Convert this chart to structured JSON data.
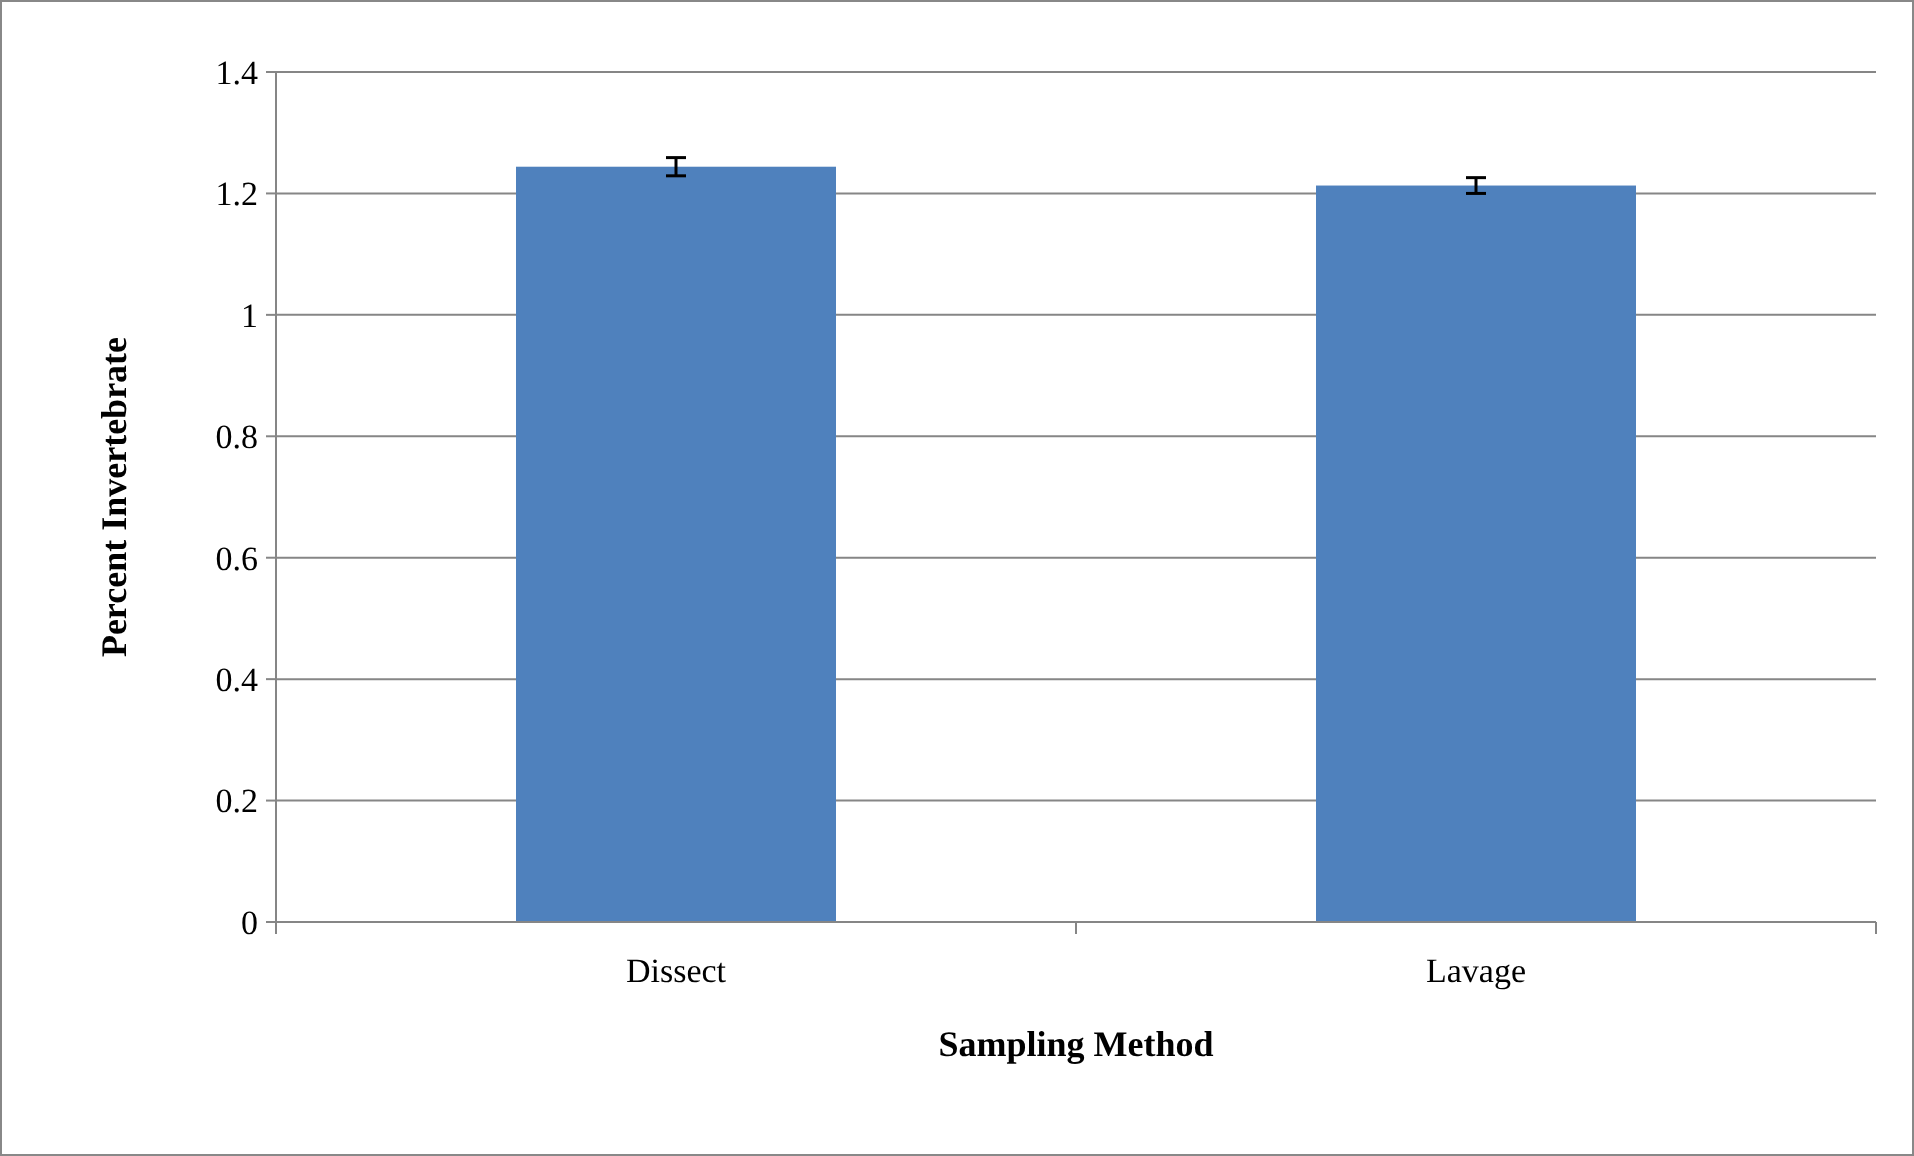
{
  "chart_data": {
    "type": "bar",
    "xlabel": "Sampling Method",
    "ylabel": "Percent Invertebrate",
    "categories": [
      "Dissect",
      "Lavage"
    ],
    "values": [
      1.244,
      1.213
    ],
    "errors": [
      0.015,
      0.013
    ],
    "color": "#4f81bd",
    "ylim": [
      0,
      1.4
    ],
    "yticks": [
      0,
      0.2,
      0.4,
      0.6,
      0.8,
      1,
      1.2,
      1.4
    ],
    "grid": "y"
  }
}
